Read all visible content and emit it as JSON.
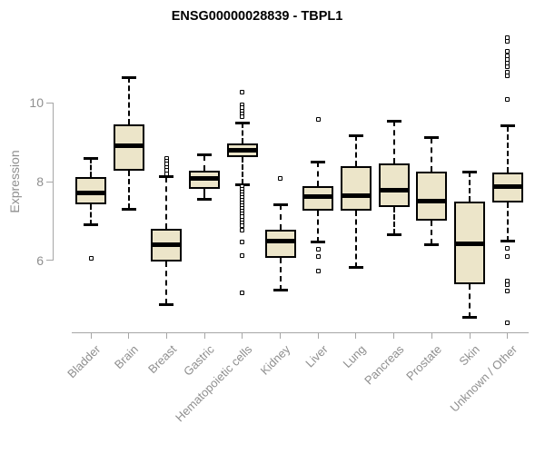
{
  "chart_data": {
    "type": "boxplot",
    "title": "ENSG00000028839 - TBPL1",
    "ylabel": "Expression",
    "xlabel": "",
    "yticks": [
      6,
      8,
      10
    ],
    "ylim": [
      4.2,
      11.8
    ],
    "grid": false,
    "legend": false,
    "box_fill_color": "#ece5c9",
    "axis_text_color": "#8f8f8f",
    "categories": [
      "Bladder",
      "Brain",
      "Breast",
      "Gastric",
      "Hematopoietic cells",
      "Kidney",
      "Liver",
      "Lung",
      "Pancreas",
      "Prostate",
      "Skin",
      "Unknown / Other"
    ],
    "series": [
      {
        "category": "Bladder",
        "whisker_low": 6.9,
        "q1": 7.42,
        "median": 7.7,
        "q3": 8.12,
        "whisker_high": 8.6,
        "outliers": [
          6.05
        ]
      },
      {
        "category": "Brain",
        "whisker_low": 7.3,
        "q1": 8.27,
        "median": 8.92,
        "q3": 9.46,
        "whisker_high": 10.65,
        "outliers": []
      },
      {
        "category": "Breast",
        "whisker_low": 4.88,
        "q1": 5.96,
        "median": 6.4,
        "q3": 6.81,
        "whisker_high": 8.12,
        "outliers": [
          8.6,
          8.52,
          8.44,
          8.36,
          8.28,
          8.2
        ]
      },
      {
        "category": "Gastric",
        "whisker_low": 7.54,
        "q1": 7.82,
        "median": 8.08,
        "q3": 8.28,
        "whisker_high": 8.67,
        "outliers": []
      },
      {
        "category": "Hematopoietic cells",
        "whisker_low": 7.93,
        "q1": 8.62,
        "median": 8.79,
        "q3": 8.96,
        "whisker_high": 9.5,
        "outliers": [
          10.27,
          9.96,
          9.88,
          9.8,
          9.73,
          9.66,
          7.87,
          7.8,
          7.73,
          7.66,
          7.59,
          7.52,
          7.45,
          7.38,
          7.31,
          7.24,
          7.17,
          7.1,
          7.03,
          6.96,
          6.89,
          6.77,
          6.46,
          6.11,
          5.16
        ]
      },
      {
        "category": "Kidney",
        "whisker_low": 5.23,
        "q1": 6.05,
        "median": 6.48,
        "q3": 6.77,
        "whisker_high": 7.42,
        "outliers": [
          8.08
        ]
      },
      {
        "category": "Liver",
        "whisker_low": 6.46,
        "q1": 7.27,
        "median": 7.63,
        "q3": 7.88,
        "whisker_high": 8.5,
        "outliers": [
          9.58,
          6.27,
          6.1,
          5.73
        ]
      },
      {
        "category": "Lung",
        "whisker_low": 5.81,
        "q1": 7.25,
        "median": 7.65,
        "q3": 8.39,
        "whisker_high": 9.17,
        "outliers": []
      },
      {
        "category": "Pancreas",
        "whisker_low": 6.65,
        "q1": 7.35,
        "median": 7.78,
        "q3": 8.46,
        "whisker_high": 9.54,
        "outliers": []
      },
      {
        "category": "Prostate",
        "whisker_low": 6.4,
        "q1": 7.0,
        "median": 7.51,
        "q3": 8.25,
        "whisker_high": 9.12,
        "outliers": []
      },
      {
        "category": "Skin",
        "whisker_low": 4.54,
        "q1": 5.38,
        "median": 6.42,
        "q3": 7.5,
        "whisker_high": 8.25,
        "outliers": []
      },
      {
        "category": "Unknown / Other",
        "whisker_low": 6.48,
        "q1": 7.47,
        "median": 7.88,
        "q3": 8.23,
        "whisker_high": 9.42,
        "outliers": [
          11.66,
          11.56,
          11.31,
          11.21,
          11.11,
          11.01,
          10.91,
          10.78,
          10.68,
          10.08,
          6.31,
          6.09,
          5.46,
          5.37,
          5.21,
          4.4
        ]
      }
    ]
  }
}
